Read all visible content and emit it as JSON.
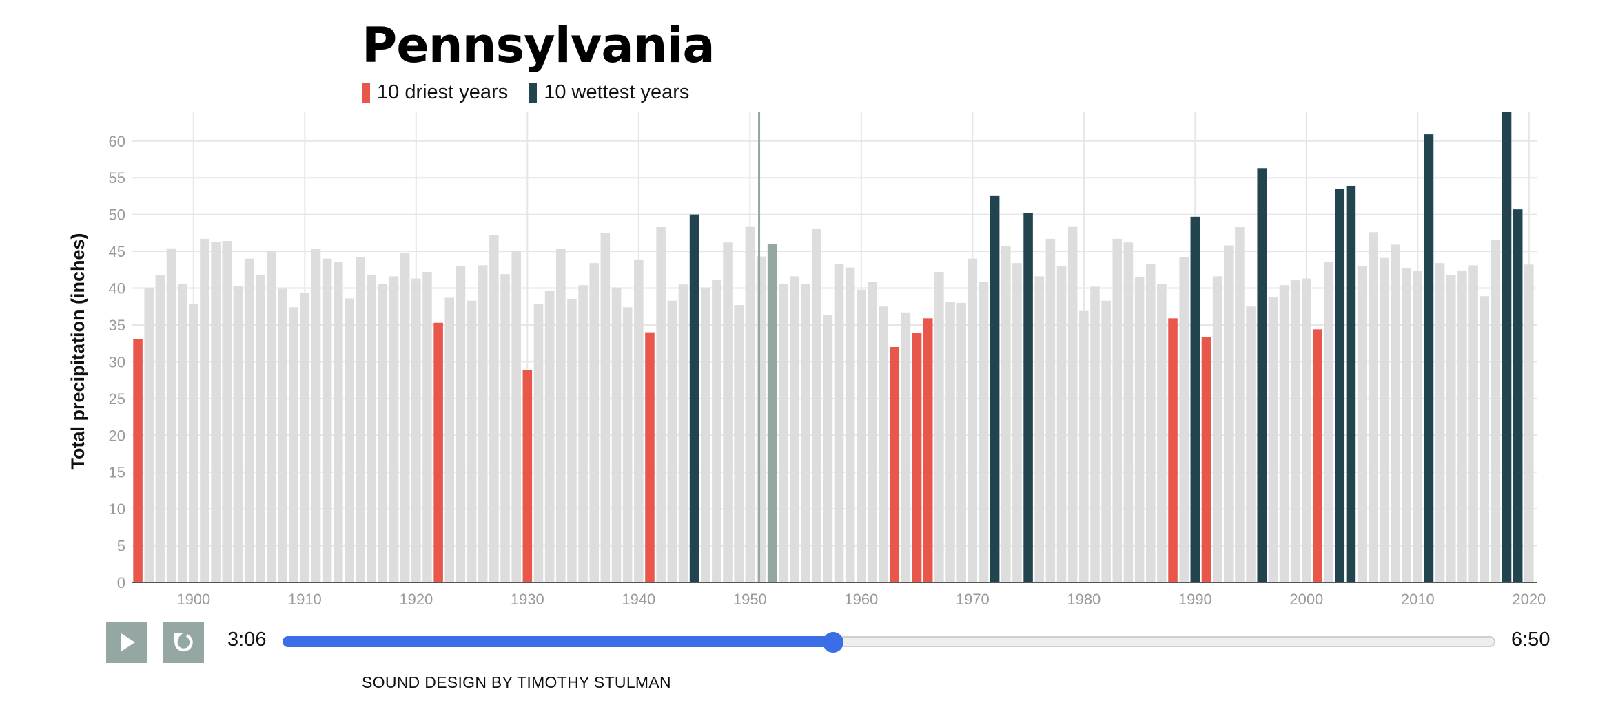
{
  "chart_data": {
    "type": "bar",
    "title": "Pennsylvania",
    "ylabel": "Total precipitation (inches)",
    "xlabel": "",
    "ylim": [
      0,
      64
    ],
    "yticks": [
      0,
      5,
      10,
      15,
      20,
      25,
      30,
      35,
      40,
      45,
      50,
      55,
      60
    ],
    "xticks": [
      1900,
      1910,
      1920,
      1930,
      1940,
      1950,
      1960,
      1970,
      1980,
      1990,
      2000,
      2010,
      2020
    ],
    "legend": [
      {
        "label": "10 driest years",
        "color": "#e8574a"
      },
      {
        "label": "10 wettest years",
        "color": "#22444f"
      }
    ],
    "default_color": "#dddddd",
    "highlight_year": 1952,
    "highlight_color": "#94a7a3",
    "start_year": 1895,
    "values": [
      33.1,
      40.0,
      41.8,
      45.4,
      40.6,
      37.8,
      46.7,
      46.3,
      46.4,
      40.3,
      44.0,
      41.8,
      45.0,
      39.9,
      37.4,
      39.3,
      45.3,
      44.0,
      43.5,
      38.6,
      44.2,
      41.8,
      40.6,
      41.6,
      44.8,
      41.3,
      42.2,
      35.3,
      38.7,
      43.0,
      38.3,
      43.1,
      47.2,
      41.9,
      45.1,
      28.9,
      37.8,
      39.6,
      45.3,
      38.5,
      40.4,
      43.4,
      47.5,
      40.1,
      37.4,
      43.9,
      34.0,
      48.3,
      38.3,
      40.5,
      50.0,
      40.1,
      41.1,
      46.2,
      37.7,
      48.4,
      44.3,
      46.0,
      40.6,
      41.6,
      40.6,
      48.0,
      36.4,
      43.3,
      42.8,
      39.8,
      40.8,
      37.5,
      32.0,
      36.7,
      33.9,
      35.9,
      42.2,
      38.1,
      38.0,
      44.0,
      40.8,
      52.6,
      45.7,
      43.4,
      50.2,
      41.6,
      46.7,
      43.0,
      48.4,
      36.9,
      40.2,
      38.3,
      46.7,
      46.2,
      41.5,
      43.3,
      40.6,
      35.9,
      44.2,
      49.7,
      33.4,
      41.6,
      45.8,
      48.3,
      37.5,
      56.3,
      38.8,
      40.4,
      41.1,
      41.3,
      34.4,
      43.6,
      53.5,
      53.9,
      43.0,
      47.6,
      44.1,
      45.9,
      42.7,
      42.3,
      60.9,
      43.4,
      41.8,
      42.4,
      43.1,
      38.9,
      46.6,
      64.0,
      50.7,
      43.2
    ],
    "driest_years": [
      1895,
      1922,
      1930,
      1941,
      1963,
      1965,
      1966,
      1988,
      1991,
      2001
    ],
    "wettest_years": [
      1945,
      1972,
      1975,
      1990,
      1996,
      2003,
      2004,
      2011,
      2018,
      2019
    ]
  },
  "player": {
    "current_time": "3:06",
    "total_time": "6:50",
    "progress": 0.454,
    "play_icon": "play-icon",
    "replay_icon": "replay-icon",
    "accent_color": "#3a6ee6"
  },
  "credit": "SOUND DESIGN BY TIMOTHY STULMAN"
}
